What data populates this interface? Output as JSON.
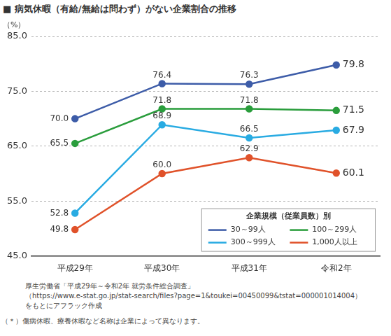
{
  "chart_data": {
    "type": "line",
    "title": "■ 病気休暇（有給/無給は問わず）がない企業割合の推移",
    "y_label": "（%）",
    "categories": [
      "平成29年",
      "平成30年",
      "平成31年",
      "令和2年"
    ],
    "series": [
      {
        "name": "30～99人",
        "color": "#3d5ca8",
        "values": [
          70.0,
          76.4,
          76.3,
          79.8
        ],
        "value_labels": [
          "70.0",
          "76.4",
          "76.3",
          "79.8"
        ]
      },
      {
        "name": "100～299人",
        "color": "#2a9d3c",
        "values": [
          65.5,
          71.8,
          71.8,
          71.5
        ],
        "value_labels": [
          "65.5",
          "71.8",
          "71.8",
          "71.5"
        ]
      },
      {
        "name": "300～999人",
        "color": "#29abe2",
        "values": [
          52.8,
          68.9,
          66.5,
          67.9
        ],
        "value_labels": [
          "52.8",
          "68.9",
          "66.5",
          "67.9"
        ]
      },
      {
        "name": "1,000人以上",
        "color": "#e0522a",
        "values": [
          49.8,
          60.0,
          62.9,
          60.1
        ],
        "value_labels": [
          "49.8",
          "60.0",
          "62.9",
          "60.1"
        ]
      }
    ],
    "ylim": [
      45,
      85
    ],
    "yticks": [
      {
        "value": 45,
        "label": "45.0"
      },
      {
        "value": 55,
        "label": "55.0"
      },
      {
        "value": 65,
        "label": "65.0"
      },
      {
        "value": 75,
        "label": "75.0"
      },
      {
        "value": 85,
        "label": "85.0"
      }
    ],
    "grid": true,
    "marker": "circle",
    "data_labels": true,
    "legend": "lower right",
    "legend_title": "企業規模（従業員数）別",
    "source": [
      "厚生労働省「平成29年～令和2年 就労条件総合調査」",
      "（https://www.e-stat.go.jp/stat-search/files?page=1&toukei=00450099&tstat=000001014004）",
      "をもとにアフラック作成"
    ],
    "footnote": "（＊）傷病休暇、療養休暇など名称は企業によって異なります。"
  }
}
